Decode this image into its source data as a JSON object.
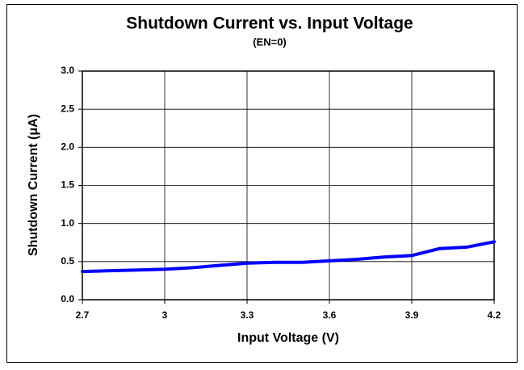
{
  "chart_data": {
    "type": "line",
    "title": "Shutdown Current vs. Input Voltage",
    "subtitle": "(EN=0)",
    "x_label": "Input Voltage (V)",
    "y_label": "Shutdown Current (μA)",
    "x": [
      2.7,
      2.8,
      2.9,
      3.0,
      3.1,
      3.2,
      3.3,
      3.4,
      3.5,
      3.6,
      3.7,
      3.8,
      3.9,
      4.0,
      4.1,
      4.2
    ],
    "series": [
      {
        "color": "#0000ff",
        "values": [
          0.37,
          0.38,
          0.39,
          0.4,
          0.42,
          0.45,
          0.48,
          0.49,
          0.49,
          0.51,
          0.53,
          0.56,
          0.58,
          0.67,
          0.69,
          0.76
        ]
      }
    ],
    "xlim": [
      2.7,
      4.2
    ],
    "xticks": [
      2.7,
      3,
      3.3,
      3.6,
      3.9,
      4.2
    ],
    "ylim": [
      0,
      3
    ],
    "yticks": [
      {
        "value": 0,
        "label": "0.0"
      },
      0.5,
      {
        "value": 1,
        "label": "1.0"
      },
      1.5,
      {
        "value": 2,
        "label": "2.0"
      },
      2.5,
      {
        "value": 3,
        "label": "3.0"
      }
    ],
    "grid": true
  }
}
